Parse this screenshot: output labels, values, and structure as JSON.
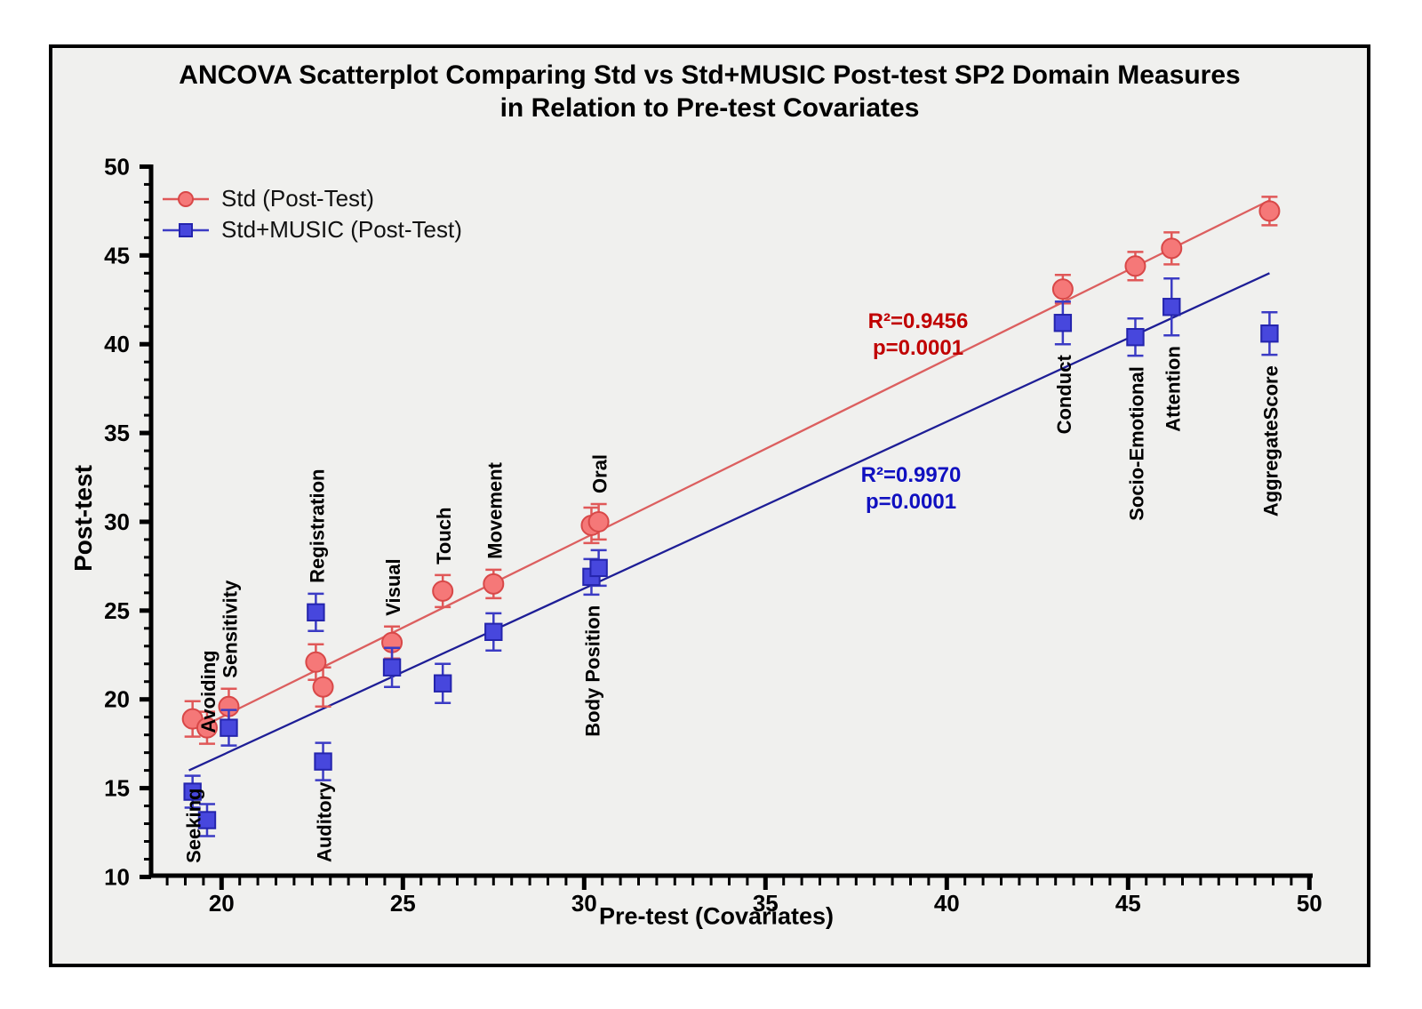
{
  "title": {
    "line1": "ANCOVA Scatterplot Comparing Std vs Std+MUSIC Post-test SP2 Domain Measures",
    "line2": "in Relation to Pre-test Covariates"
  },
  "chart_data": {
    "type": "scatter",
    "title": "ANCOVA Scatterplot Comparing Std vs Std+MUSIC Post-test SP2 Domain Measures in Relation to Pre-test Covariates",
    "xlabel": "Pre-test (Covariates)",
    "ylabel": "Post-test",
    "xlim": [
      18,
      50.6
    ],
    "ylim": [
      10,
      50
    ],
    "x_ticks": [
      20,
      25,
      30,
      35,
      40,
      45,
      50
    ],
    "y_ticks": [
      10,
      15,
      20,
      25,
      30,
      35,
      40,
      45,
      50
    ],
    "x_minor_step": 0.5,
    "y_minor_step": 1,
    "grid": "off",
    "legend_position": "top-left-inside",
    "categories": [
      "Seeking",
      "Avoiding",
      "Sensitivity",
      "Registration",
      "Auditory",
      "Visual",
      "Touch",
      "Movement",
      "Body Position",
      "Oral",
      "Conduct",
      "Socio-Emotional",
      "Attention",
      "AggregateScore"
    ],
    "x": [
      19.2,
      19.6,
      20.2,
      22.6,
      22.8,
      24.7,
      26.1,
      27.5,
      30.2,
      30.4,
      43.2,
      45.2,
      46.2,
      48.9
    ],
    "label_side": [
      "below",
      "above",
      "above",
      "above",
      "below",
      "above",
      "above",
      "above",
      "below",
      "above",
      "below",
      "below",
      "below",
      "below"
    ],
    "series": [
      {
        "name": "Std (Post-Test)",
        "marker": "circle",
        "color": "#f57878",
        "edge_color": "#d84848",
        "error_color": "#e05858",
        "line_color": "#dc5f5f",
        "values": [
          18.9,
          18.4,
          19.6,
          22.1,
          20.7,
          23.2,
          26.1,
          26.5,
          29.8,
          30.0,
          43.1,
          44.4,
          45.4,
          47.5
        ],
        "errors": [
          1.0,
          0.9,
          1.0,
          1.0,
          1.1,
          0.9,
          0.9,
          0.8,
          1.0,
          1.0,
          0.8,
          0.8,
          0.9,
          0.8
        ],
        "trend": {
          "x1": 19.4,
          "y1": 18.4,
          "x2": 48.9,
          "y2": 48.1
        },
        "r2_label": "R²=0.9456",
        "p_label": "p=0.0001",
        "annotation_color": "#c00000"
      },
      {
        "name": "Std+MUSIC (Post-Test)",
        "marker": "square",
        "color": "#4747dd",
        "edge_color": "#2424ad",
        "error_color": "#3b3bc4",
        "line_color": "#1e1e96",
        "values": [
          14.8,
          13.2,
          18.4,
          24.9,
          16.5,
          21.8,
          20.9,
          23.8,
          26.9,
          27.4,
          41.2,
          40.4,
          42.1,
          40.6
        ],
        "errors": [
          0.9,
          0.9,
          1.0,
          1.05,
          1.05,
          1.1,
          1.1,
          1.05,
          1.0,
          1.0,
          1.2,
          1.05,
          1.6,
          1.2
        ],
        "trend": {
          "x1": 19.1,
          "y1": 16.0,
          "x2": 48.9,
          "y2": 44.0
        },
        "r2_label": "R²=0.9970",
        "p_label": "p=0.0001",
        "annotation_color": "#1010c0"
      }
    ]
  }
}
